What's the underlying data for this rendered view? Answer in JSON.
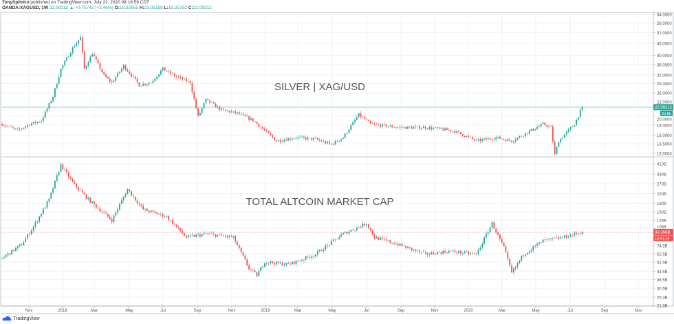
{
  "header": {
    "author": "TonySpilotro",
    "published": "published on TradingView.com, July 22, 2020 08:16:59 CDT",
    "symbol": "OANDA:XAGUSD, 1W",
    "last": "22.09212",
    "change": "+0.75742 (+3.46%)",
    "o_label": "O:",
    "o": "19.32655",
    "h_label": "H:",
    "h": "23.05158",
    "l_label": "L:",
    "l": "19.25752",
    "c_label": "C:",
    "c": "22.09212"
  },
  "footer": {
    "brand": "TradingView"
  },
  "colors": {
    "up": "#26a69a",
    "down": "#ef5350",
    "grid": "#eef1f6",
    "axis": "#b2b5be",
    "text": "#555555"
  },
  "chart_data": [
    {
      "type": "candlestick",
      "title": "SILVER | XAG/USD",
      "scale": "log",
      "ylim": [
        12.6,
        64
      ],
      "y_ticks": [
        "64.0000",
        "58.0000",
        "52.0000",
        "46.0000",
        "40.0000",
        "36.0000",
        "32.0000",
        "29.0000",
        "26.0000",
        "22.0000",
        "20.0000",
        "18.0000",
        "16.0000",
        "14.5000",
        "13.0000"
      ],
      "y_tick_values": [
        64,
        58,
        52,
        46,
        40,
        36,
        32,
        29,
        26,
        22,
        20,
        18,
        16,
        14.5,
        13
      ],
      "last_price_label": "22.09212",
      "countdown_label": "2d 8h",
      "last_price": 22.09212,
      "anchors_week_value": [
        [
          0,
          18.2
        ],
        [
          4,
          16.9
        ],
        [
          7,
          18.2
        ],
        [
          10,
          18.9
        ],
        [
          13,
          25
        ],
        [
          15,
          34.3
        ],
        [
          18,
          43.5
        ],
        [
          20,
          49
        ],
        [
          21,
          34.3
        ],
        [
          23,
          41
        ],
        [
          26,
          31.7
        ],
        [
          28,
          29.3
        ],
        [
          31,
          35.5
        ],
        [
          35,
          28.5
        ],
        [
          38,
          29.3
        ],
        [
          41,
          34.3
        ],
        [
          44,
          31.7
        ],
        [
          48,
          29.3
        ],
        [
          50,
          19.8
        ],
        [
          52,
          24
        ],
        [
          56,
          21.4
        ],
        [
          60,
          20.6
        ],
        [
          64,
          19
        ],
        [
          67,
          16.9
        ],
        [
          70,
          15
        ],
        [
          75,
          15.6
        ],
        [
          80,
          15.3
        ],
        [
          84,
          14.4
        ],
        [
          87,
          15.6
        ],
        [
          91,
          20.3
        ],
        [
          94,
          18.2
        ],
        [
          101,
          17.5
        ],
        [
          108,
          17.5
        ],
        [
          115,
          16.9
        ],
        [
          121,
          15
        ],
        [
          126,
          15.6
        ],
        [
          130,
          15
        ],
        [
          138,
          18.2
        ],
        [
          140,
          17.5
        ],
        [
          141,
          12.8
        ],
        [
          142,
          15
        ],
        [
          146,
          18.2
        ],
        [
          148,
          22.09
        ]
      ]
    },
    {
      "type": "candlestick",
      "title": "TOTAL ALTCOIN MARKET CAP",
      "scale": "log",
      "ylim": [
        21.3,
        410
      ],
      "y_ticks": [
        "410B",
        "330B",
        "270B",
        "220B",
        "180B",
        "150B",
        "126B",
        "106B",
        "74.5B",
        "62.5B",
        "52.5B",
        "43.5B",
        "36.5B",
        "30.5B",
        "25.3B",
        "21.3B"
      ],
      "y_tick_values": [
        410,
        330,
        270,
        220,
        180,
        150,
        126,
        106,
        74.5,
        62.5,
        52.5,
        43.5,
        36.5,
        30.5,
        25.3,
        21.3
      ],
      "last_price_label": "98.356B",
      "countdown_label": "10:41:19",
      "last_price": 98.356,
      "anchors_week_value": [
        [
          0,
          57
        ],
        [
          5,
          76
        ],
        [
          8,
          110
        ],
        [
          12,
          194
        ],
        [
          15,
          400
        ],
        [
          18,
          276
        ],
        [
          22,
          194
        ],
        [
          28,
          126
        ],
        [
          32,
          240
        ],
        [
          36,
          158
        ],
        [
          42,
          136
        ],
        [
          47,
          88
        ],
        [
          52,
          95
        ],
        [
          59,
          88
        ],
        [
          63,
          46
        ],
        [
          65,
          40
        ],
        [
          67,
          53
        ],
        [
          73,
          50
        ],
        [
          80,
          62
        ],
        [
          87,
          95
        ],
        [
          93,
          118
        ],
        [
          95,
          88
        ],
        [
          101,
          76
        ],
        [
          108,
          62
        ],
        [
          114,
          66
        ],
        [
          121,
          62
        ],
        [
          125,
          118
        ],
        [
          128,
          71
        ],
        [
          130,
          42
        ],
        [
          133,
          62
        ],
        [
          138,
          82
        ],
        [
          143,
          88
        ],
        [
          148,
          98.356
        ]
      ]
    }
  ],
  "x_ticks": [
    "Nov",
    "2018",
    "Mar",
    "May",
    "Jul",
    "Sep",
    "Nov",
    "2019",
    "Mar",
    "May",
    "Jul",
    "Sep",
    "Nov",
    "2020",
    "Mar",
    "May",
    "Jul",
    "Sep",
    "Nov"
  ]
}
